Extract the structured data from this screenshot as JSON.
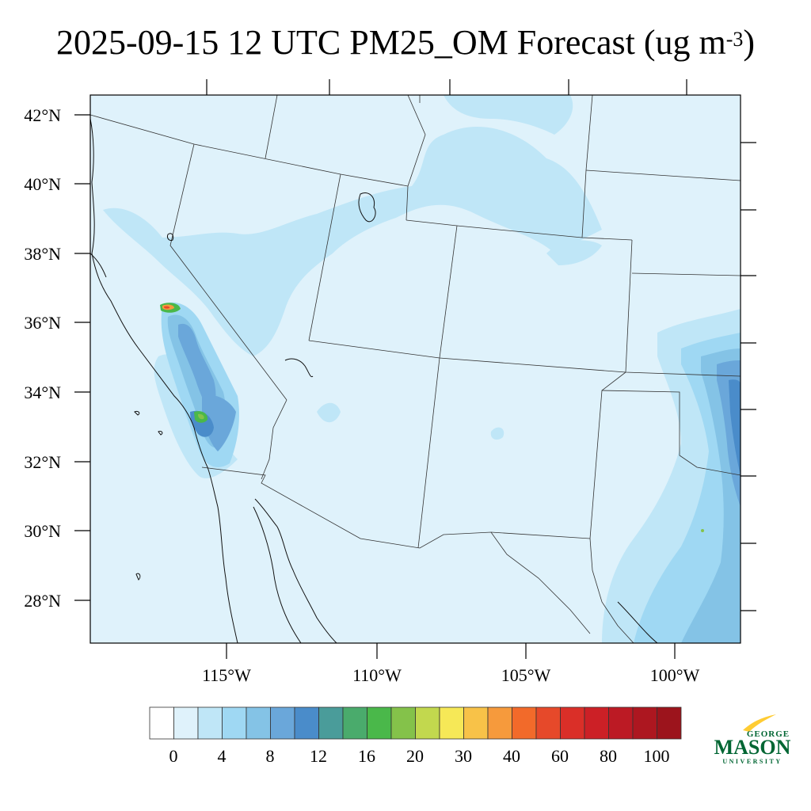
{
  "title": {
    "prefix": "2025-09-15 12 UTC PM25_OM Forecast (ug m",
    "exponent": "-3",
    "suffix": ")"
  },
  "map": {
    "lat_labels": [
      "42°N",
      "40°N",
      "38°N",
      "36°N",
      "34°N",
      "32°N",
      "30°N",
      "28°N"
    ],
    "lon_labels": [
      "115°W",
      "110°W",
      "105°W",
      "100°W"
    ],
    "ocean_color": "#dff2fb",
    "land_base_color": "#dff2fb"
  },
  "colorbar": {
    "colors": [
      "#ffffff",
      "#dff2fb",
      "#bfe6f7",
      "#9fd8f3",
      "#84c3e6",
      "#6aa7da",
      "#4a8cca",
      "#4a9c9a",
      "#4aab6c",
      "#4ab84a",
      "#84c24a",
      "#c2d84e",
      "#f6e857",
      "#f8c248",
      "#f69a3c",
      "#f26a2a",
      "#e6492a",
      "#da2f28",
      "#cc2026",
      "#bc1a24",
      "#ad1720",
      "#9c141c"
    ],
    "labels": [
      "0",
      "4",
      "8",
      "12",
      "16",
      "20",
      "30",
      "40",
      "60",
      "80",
      "100"
    ]
  },
  "logo": {
    "top_text": "GEORGE",
    "main_text": "MASON",
    "bottom_text": "UNIVERSITY",
    "green": "#006633",
    "gold": "#ffcc33"
  }
}
